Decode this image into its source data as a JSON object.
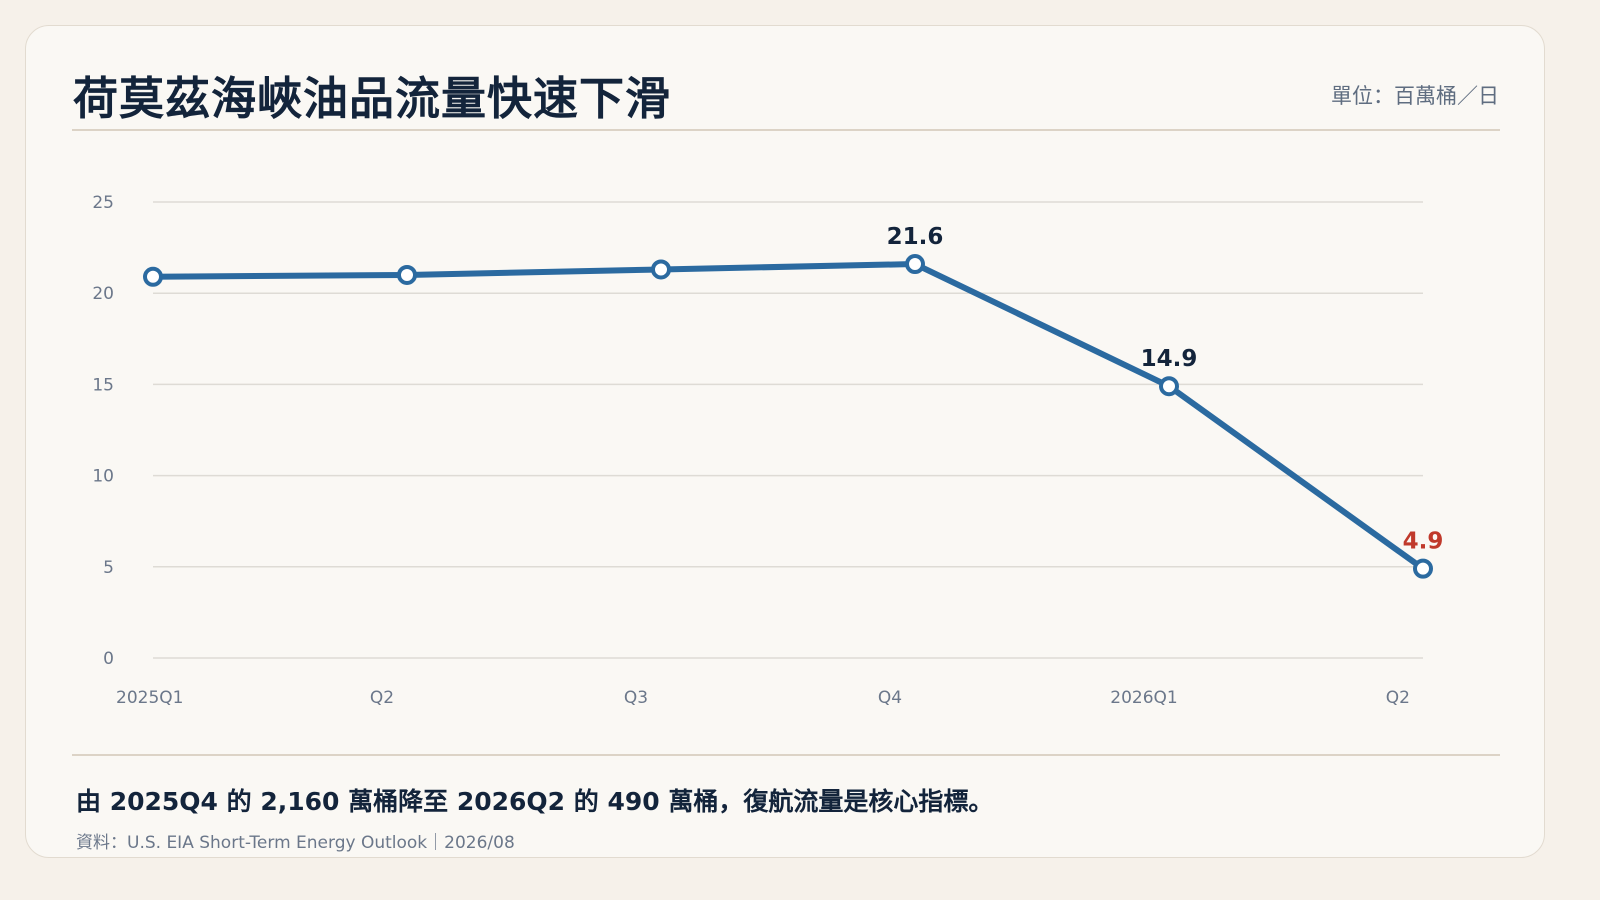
{
  "header": {
    "title": "荷莫茲海峽油品流量快速下滑",
    "unit": "單位：百萬桶／日"
  },
  "footer": {
    "note": "由 2025Q4 的 2,160 萬桶降至 2026Q2 的 490 萬桶，復航流量是核心指標。",
    "source": "資料：U.S. EIA Short-Term Energy Outlook｜2026/08"
  },
  "colors": {
    "line": "#2b6aa0",
    "highlight_label": "#c0392b",
    "label": "#13243b",
    "tick": "#6b778a",
    "grid": "#dedbd5"
  },
  "chart_data": {
    "type": "line",
    "categories": [
      "2025Q1",
      "Q2",
      "Q3",
      "Q4",
      "2026Q1",
      "Q2"
    ],
    "series": [
      {
        "values": [
          20.9,
          21.0,
          21.3,
          21.6,
          14.9,
          4.9
        ]
      }
    ],
    "data_labels": [
      "",
      "",
      "",
      "21.6",
      "14.9",
      "4.9"
    ],
    "highlight_index": 5,
    "ylim": [
      0,
      25
    ],
    "yticks": [
      0,
      5,
      10,
      15,
      20,
      25
    ],
    "grid": true,
    "markers": "hollow-circle"
  }
}
